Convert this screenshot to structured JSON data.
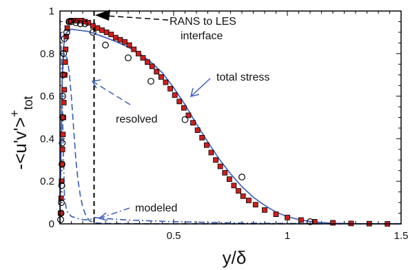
{
  "chart_data": {
    "type": "line",
    "title": "",
    "xlabel": "y/δ",
    "ylabel": {
      "main": "-<u'v'>",
      "sup": "+",
      "sub": "tot"
    },
    "xlim": [
      0,
      1.5
    ],
    "ylim": [
      0,
      1
    ],
    "x_ticks": [
      0.5,
      1,
      1.5
    ],
    "y_ticks": [
      0,
      0.2,
      0.4,
      0.6,
      0.8,
      1
    ],
    "x_tick_labels": [
      "0.5",
      "1",
      "1.5"
    ],
    "y_tick_labels": [
      "0",
      "0.2",
      "0.4",
      "0.6",
      "0.8",
      "1"
    ],
    "grid": false,
    "series": [
      {
        "kind": "line",
        "style": "solid",
        "color": "#3f5fb8",
        "points": [
          [
            0,
            0
          ],
          [
            0.005,
            0.4
          ],
          [
            0.01,
            0.7
          ],
          [
            0.015,
            0.82
          ],
          [
            0.02,
            0.87
          ],
          [
            0.03,
            0.9
          ],
          [
            0.05,
            0.915
          ],
          [
            0.08,
            0.91
          ],
          [
            0.12,
            0.905
          ],
          [
            0.15,
            0.895
          ],
          [
            0.2,
            0.875
          ],
          [
            0.25,
            0.855
          ],
          [
            0.3,
            0.83
          ],
          [
            0.35,
            0.8
          ],
          [
            0.4,
            0.76
          ],
          [
            0.45,
            0.71
          ],
          [
            0.5,
            0.64
          ],
          [
            0.55,
            0.56
          ],
          [
            0.6,
            0.47
          ],
          [
            0.65,
            0.385
          ],
          [
            0.7,
            0.305
          ],
          [
            0.75,
            0.235
          ],
          [
            0.8,
            0.175
          ],
          [
            0.85,
            0.125
          ],
          [
            0.9,
            0.087
          ],
          [
            0.95,
            0.055
          ],
          [
            1.0,
            0.034
          ],
          [
            1.05,
            0.02
          ],
          [
            1.1,
            0.011
          ],
          [
            1.15,
            0.006
          ],
          [
            1.2,
            0.003
          ],
          [
            1.3,
            0.001
          ],
          [
            1.4,
            0.0
          ],
          [
            1.5,
            0.0
          ]
        ]
      },
      {
        "kind": "line",
        "style": "dashed",
        "color": "#3f5fb8",
        "points": [
          [
            0,
            0
          ],
          [
            0.005,
            0.35
          ],
          [
            0.01,
            0.65
          ],
          [
            0.015,
            0.78
          ],
          [
            0.02,
            0.8
          ],
          [
            0.03,
            0.78
          ],
          [
            0.04,
            0.72
          ],
          [
            0.05,
            0.6
          ],
          [
            0.06,
            0.45
          ],
          [
            0.07,
            0.3
          ],
          [
            0.08,
            0.2
          ],
          [
            0.09,
            0.13
          ],
          [
            0.1,
            0.08
          ],
          [
            0.11,
            0.05
          ],
          [
            0.12,
            0.03
          ],
          [
            0.13,
            0.015
          ],
          [
            0.15,
            0.005
          ],
          [
            0.2,
            0.002
          ],
          [
            0.4,
            0.0
          ],
          [
            1.5,
            0.0
          ]
        ]
      },
      {
        "kind": "line",
        "style": "dashdot",
        "color": "#3f5fb8",
        "points": [
          [
            0,
            0.96
          ],
          [
            0.005,
            0.85
          ],
          [
            0.01,
            0.6
          ],
          [
            0.015,
            0.32
          ],
          [
            0.02,
            0.12
          ],
          [
            0.03,
            0.06
          ],
          [
            0.05,
            0.035
          ],
          [
            0.08,
            0.025
          ],
          [
            0.1,
            0.02
          ],
          [
            0.13,
            0.018
          ],
          [
            0.15,
            0.03
          ],
          [
            0.2,
            0.025
          ],
          [
            0.3,
            0.018
          ],
          [
            0.5,
            0.01
          ],
          [
            0.8,
            0.004
          ],
          [
            1.0,
            0.002
          ],
          [
            1.5,
            0.0
          ]
        ]
      },
      {
        "kind": "markers",
        "marker": "square",
        "color": "#cc1f1f",
        "points": [
          [
            0.003,
            0.05
          ],
          [
            0.005,
            0.12
          ],
          [
            0.007,
            0.2
          ],
          [
            0.009,
            0.28
          ],
          [
            0.011,
            0.35
          ],
          [
            0.013,
            0.42
          ],
          [
            0.015,
            0.5
          ],
          [
            0.017,
            0.57
          ],
          [
            0.019,
            0.63
          ],
          [
            0.021,
            0.7
          ],
          [
            0.023,
            0.76
          ],
          [
            0.025,
            0.82
          ],
          [
            0.028,
            0.88
          ],
          [
            0.032,
            0.92
          ],
          [
            0.04,
            0.95
          ],
          [
            0.05,
            0.955
          ],
          [
            0.065,
            0.955
          ],
          [
            0.08,
            0.955
          ],
          [
            0.095,
            0.955
          ],
          [
            0.11,
            0.95
          ],
          [
            0.125,
            0.945
          ],
          [
            0.145,
            0.93
          ],
          [
            0.165,
            0.92
          ],
          [
            0.185,
            0.91
          ],
          [
            0.205,
            0.9
          ],
          [
            0.225,
            0.89
          ],
          [
            0.245,
            0.875
          ],
          [
            0.265,
            0.865
          ],
          [
            0.285,
            0.855
          ],
          [
            0.305,
            0.84
          ],
          [
            0.325,
            0.82
          ],
          [
            0.345,
            0.8
          ],
          [
            0.365,
            0.78
          ],
          [
            0.385,
            0.76
          ],
          [
            0.405,
            0.74
          ],
          [
            0.425,
            0.715
          ],
          [
            0.445,
            0.69
          ],
          [
            0.465,
            0.665
          ],
          [
            0.485,
            0.635
          ],
          [
            0.505,
            0.605
          ],
          [
            0.525,
            0.575
          ],
          [
            0.545,
            0.545
          ],
          [
            0.565,
            0.51
          ],
          [
            0.585,
            0.475
          ],
          [
            0.605,
            0.44
          ],
          [
            0.625,
            0.405
          ],
          [
            0.645,
            0.37
          ],
          [
            0.665,
            0.335
          ],
          [
            0.685,
            0.3
          ],
          [
            0.705,
            0.27
          ],
          [
            0.725,
            0.24
          ],
          [
            0.745,
            0.21
          ],
          [
            0.765,
            0.18
          ],
          [
            0.785,
            0.155
          ],
          [
            0.805,
            0.13
          ],
          [
            0.83,
            0.11
          ],
          [
            0.86,
            0.09
          ],
          [
            0.9,
            0.065
          ],
          [
            0.95,
            0.045
          ],
          [
            1.0,
            0.03
          ],
          [
            1.06,
            0.018
          ],
          [
            1.12,
            0.01
          ],
          [
            1.2,
            0.005
          ],
          [
            1.28,
            0.002
          ],
          [
            1.36,
            0.001
          ],
          [
            1.44,
            0.0
          ]
        ]
      },
      {
        "kind": "markers",
        "marker": "circle",
        "color": "#000000",
        "points": [
          [
            0.003,
            0.02
          ],
          [
            0.005,
            0.05
          ],
          [
            0.006,
            0.1
          ],
          [
            0.008,
            0.18
          ],
          [
            0.009,
            0.28
          ],
          [
            0.01,
            0.38
          ],
          [
            0.011,
            0.5
          ],
          [
            0.012,
            0.6
          ],
          [
            0.014,
            0.7
          ],
          [
            0.016,
            0.8
          ],
          [
            0.02,
            0.87
          ],
          [
            0.03,
            0.9
          ],
          [
            0.04,
            0.95
          ],
          [
            0.05,
            0.95
          ],
          [
            0.07,
            0.945
          ],
          [
            0.09,
            0.94
          ],
          [
            0.11,
            0.94
          ],
          [
            0.145,
            0.9
          ],
          [
            0.2,
            0.84
          ],
          [
            0.3,
            0.78
          ],
          [
            0.4,
            0.67
          ],
          [
            0.55,
            0.49
          ],
          [
            0.8,
            0.22
          ],
          [
            1.1,
            0.01
          ]
        ]
      }
    ],
    "annotations": {
      "rans_line1": "RANS to LES",
      "rans_line2": "interface",
      "total_stress": "total stress",
      "resolved": "resolved",
      "modeled": "modeled"
    },
    "interface_x": 0.15
  }
}
